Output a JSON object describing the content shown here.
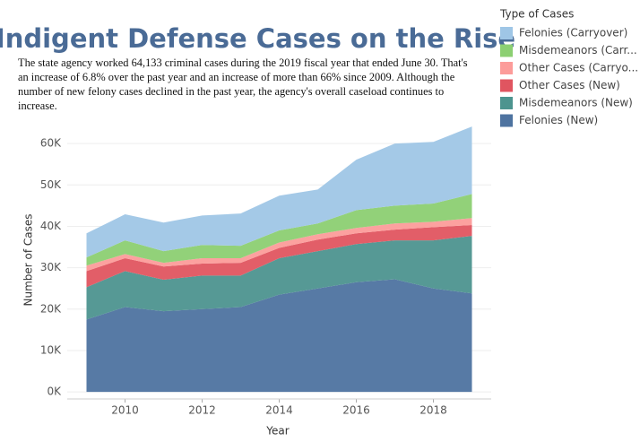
{
  "chart_data": {
    "type": "stacked-area",
    "title": "Indigent Defense Cases on the Rise",
    "subtitle": "The state agency worked 64,133 criminal cases during the 2019 fiscal year that ended June 30. That's an increase of 6.8% over the past year and an increase of more than 66% since 2009. Although the number of new felony cases declined in the past year, the agency's overall caseload continues to increase.",
    "x_label": "Year",
    "y_label": "Number of Cases",
    "legend_title": "Type of Cases",
    "x": [
      2009,
      2010,
      2011,
      2012,
      2013,
      2014,
      2015,
      2016,
      2017,
      2018,
      2019
    ],
    "series": [
      {
        "name": "Felonies (New)",
        "color": "#4e73a0",
        "values": [
          17500,
          20500,
          19500,
          20000,
          20500,
          23500,
          25000,
          26500,
          27200,
          25000,
          23800
        ]
      },
      {
        "name": "Misdemeanors (New)",
        "color": "#4d948f",
        "values": [
          7800,
          8700,
          7600,
          8100,
          7600,
          8800,
          9000,
          9200,
          9400,
          11600,
          13900
        ]
      },
      {
        "name": "Other Cases (New)",
        "color": "#e05560",
        "values": [
          3900,
          3100,
          3200,
          2900,
          3100,
          2500,
          2800,
          2600,
          2600,
          3200,
          2600
        ]
      },
      {
        "name": "Other Cases (Carryo...",
        "color": "#fc9c9a",
        "values": [
          1300,
          1000,
          900,
          1300,
          1100,
          1300,
          1300,
          1300,
          1500,
          1300,
          1700
        ]
      },
      {
        "name": "Misdemeanors (Carr...",
        "color": "#8ccf72",
        "values": [
          2000,
          3300,
          2800,
          3200,
          3000,
          2900,
          2600,
          4300,
          4300,
          4400,
          5800
        ]
      },
      {
        "name": "Felonies (Carryover)",
        "color": "#9fc6e6",
        "values": [
          5800,
          6300,
          6900,
          7100,
          7800,
          8400,
          8200,
          12200,
          15000,
          14900,
          16300
        ]
      }
    ],
    "xlim": [
      2008.5,
      2019.5
    ],
    "xticks": [
      2010,
      2012,
      2014,
      2016,
      2018
    ],
    "ylim": [
      -1700,
      65000
    ],
    "yticks": [
      {
        "value": 0,
        "label": "0K"
      },
      {
        "value": 10000,
        "label": "10K"
      },
      {
        "value": 20000,
        "label": "20K"
      },
      {
        "value": 30000,
        "label": "30K"
      },
      {
        "value": 40000,
        "label": "40K"
      },
      {
        "value": 50000,
        "label": "50K"
      },
      {
        "value": 60000,
        "label": "60K"
      }
    ],
    "grid": true
  }
}
